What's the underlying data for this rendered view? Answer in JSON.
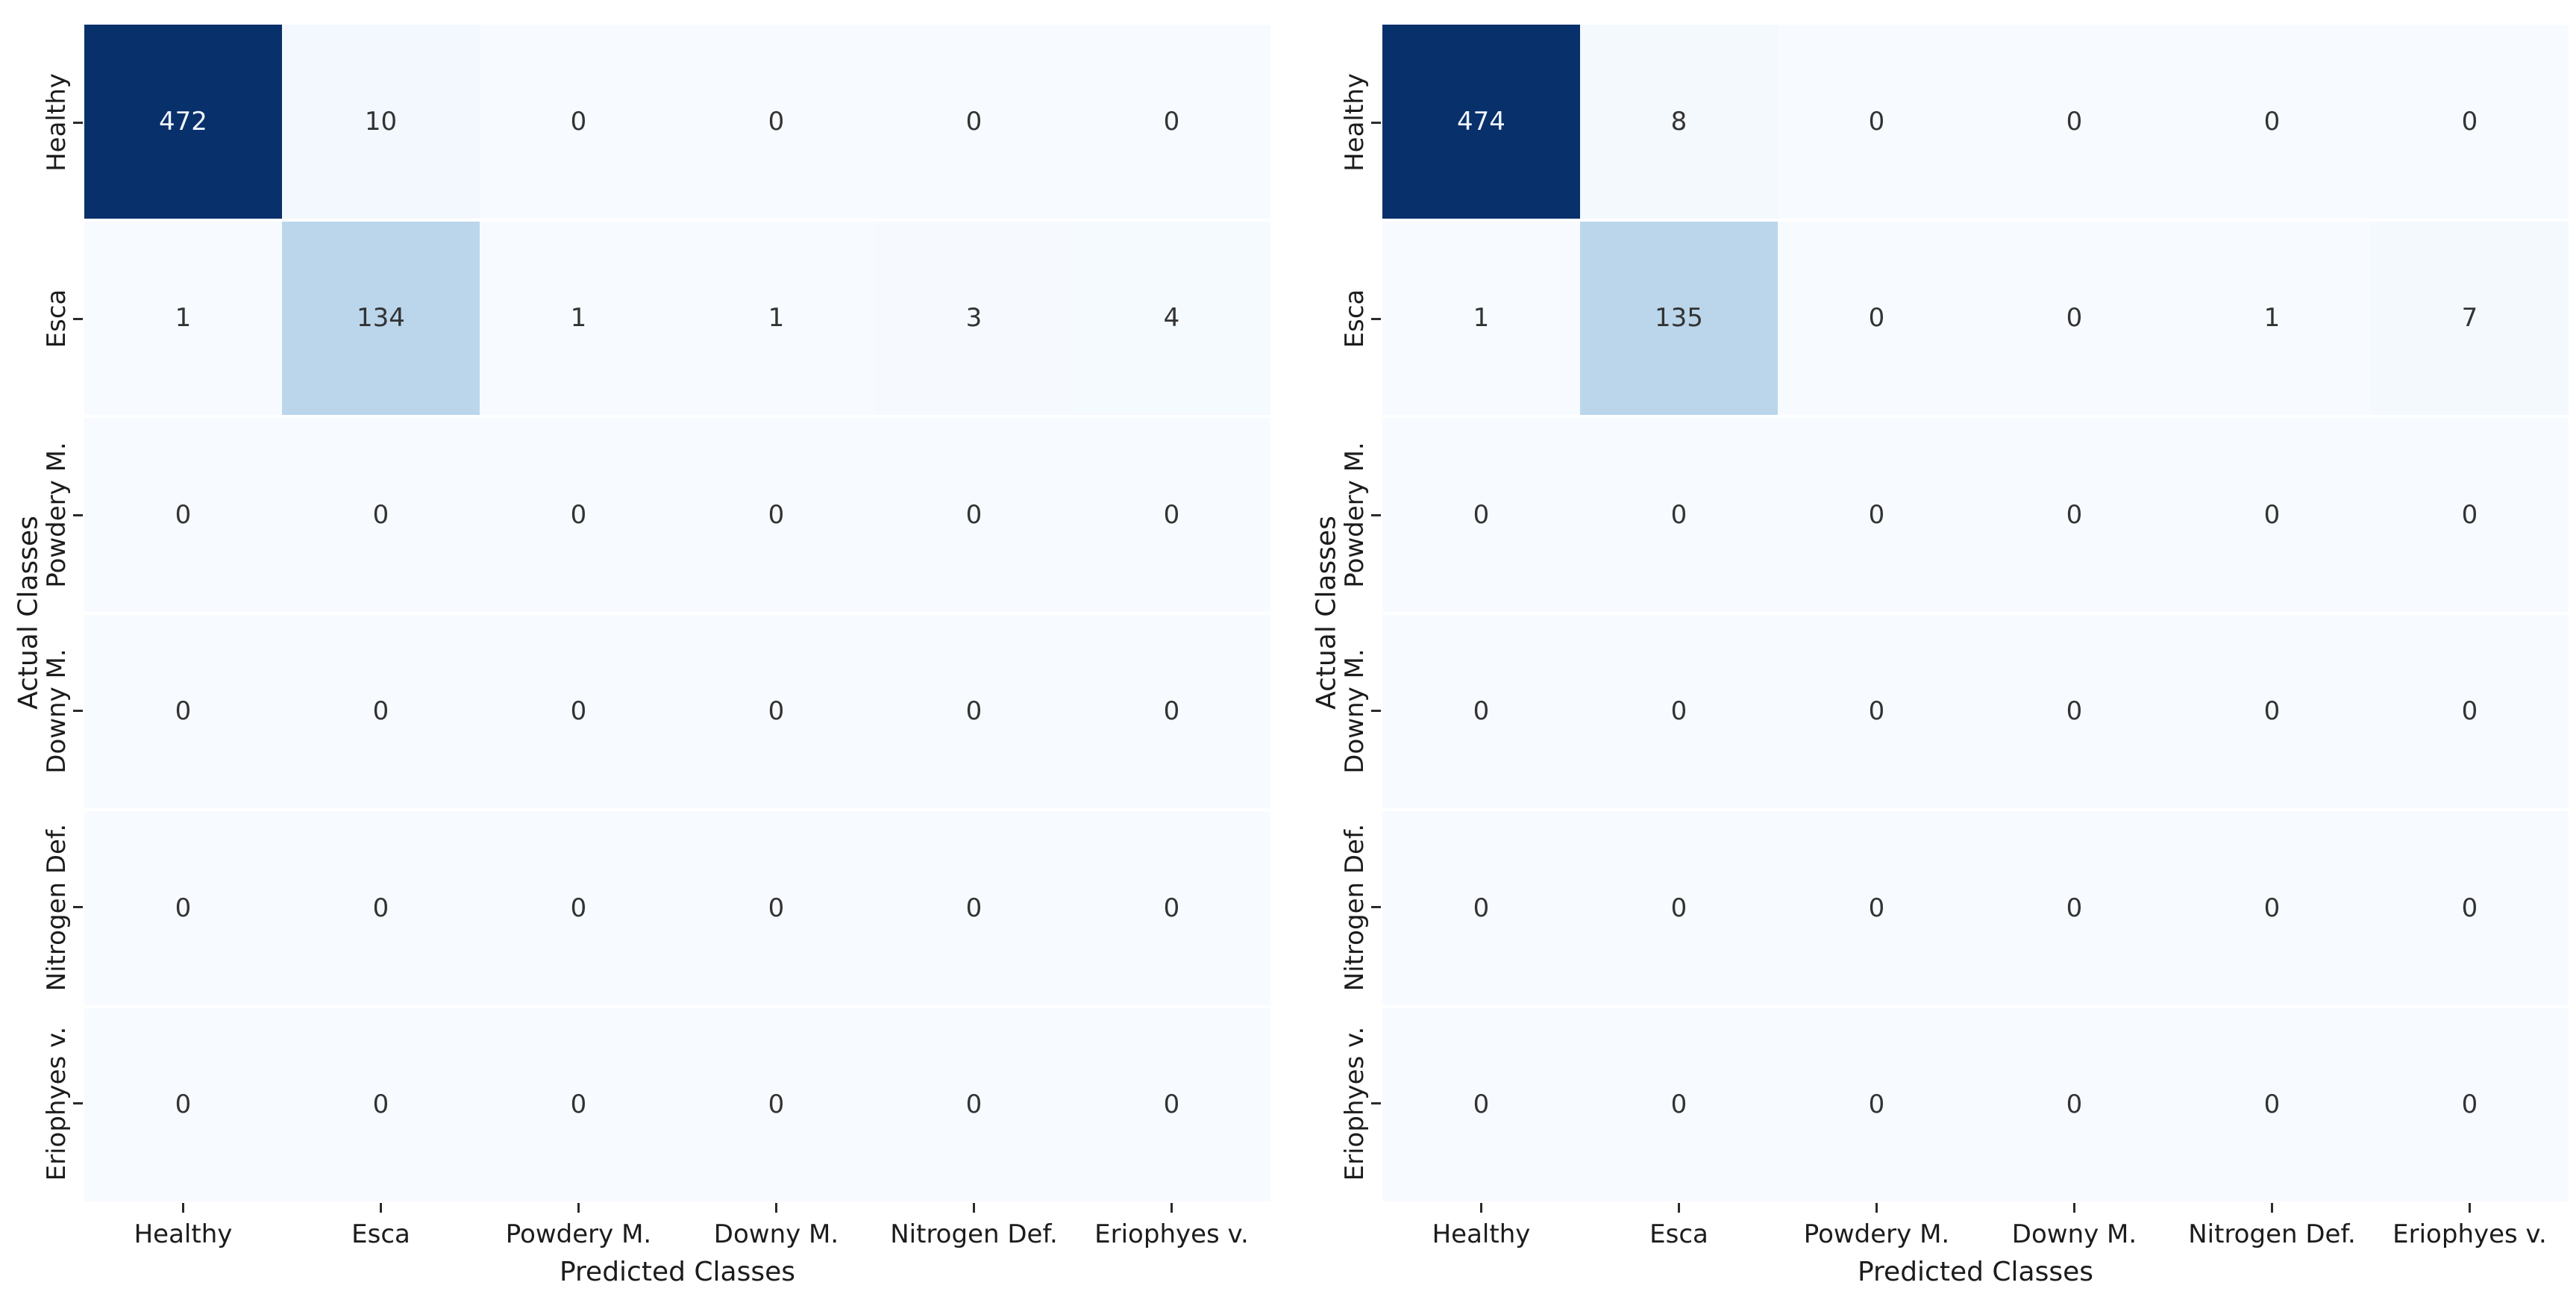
{
  "figure": {
    "background": "#ffffff",
    "tick_text_color": "#1c1c1c",
    "annotation_dark_text": "#333333",
    "annotation_light_text": "#f0f4fa"
  },
  "chart_data": [
    {
      "type": "heatmap",
      "name": "confusion-matrix-left",
      "xlabel": "Predicted Classes",
      "ylabel": "Actual Classes",
      "x_tick_labels": [
        "Healthy",
        "Esca",
        "Powdery M.",
        "Downy M.",
        "Nitrogen Def.",
        "Eriophyes v."
      ],
      "y_tick_labels": [
        "Healthy",
        "Esca",
        "Powdery M.",
        "Downy M.",
        "Nitrogen Def.",
        "Eriophyes v."
      ],
      "matrix": [
        [
          472,
          10,
          0,
          0,
          0,
          0
        ],
        [
          1,
          134,
          1,
          1,
          3,
          4
        ],
        [
          0,
          0,
          0,
          0,
          0,
          0
        ],
        [
          0,
          0,
          0,
          0,
          0,
          0
        ],
        [
          0,
          0,
          0,
          0,
          0,
          0
        ],
        [
          0,
          0,
          0,
          0,
          0,
          0
        ]
      ],
      "vmin": 0,
      "vmax": 472,
      "colormap": "Blues",
      "colormap_anchors": [
        "#f7fbff",
        "#deebf7",
        "#c6dbef",
        "#9ecae1",
        "#6baed6",
        "#4292c6",
        "#2171b5",
        "#08519c",
        "#08306b"
      ],
      "grid_seams": "white row seams between cells",
      "legend": "none"
    },
    {
      "type": "heatmap",
      "name": "confusion-matrix-right",
      "xlabel": "Predicted Classes",
      "ylabel": "Actual Classes",
      "x_tick_labels": [
        "Healthy",
        "Esca",
        "Powdery M.",
        "Downy M.",
        "Nitrogen Def.",
        "Eriophyes v."
      ],
      "y_tick_labels": [
        "Healthy",
        "Esca",
        "Powdery M.",
        "Downy M.",
        "Nitrogen Def.",
        "Eriophyes v."
      ],
      "matrix": [
        [
          474,
          8,
          0,
          0,
          0,
          0
        ],
        [
          1,
          135,
          0,
          0,
          1,
          7
        ],
        [
          0,
          0,
          0,
          0,
          0,
          0
        ],
        [
          0,
          0,
          0,
          0,
          0,
          0
        ],
        [
          0,
          0,
          0,
          0,
          0,
          0
        ],
        [
          0,
          0,
          0,
          0,
          0,
          0
        ]
      ],
      "vmin": 0,
      "vmax": 474,
      "colormap": "Blues",
      "colormap_anchors": [
        "#f7fbff",
        "#deebf7",
        "#c6dbef",
        "#9ecae1",
        "#6baed6",
        "#4292c6",
        "#2171b5",
        "#08519c",
        "#08306b"
      ],
      "grid_seams": "white row seams between cells",
      "legend": "none"
    }
  ]
}
